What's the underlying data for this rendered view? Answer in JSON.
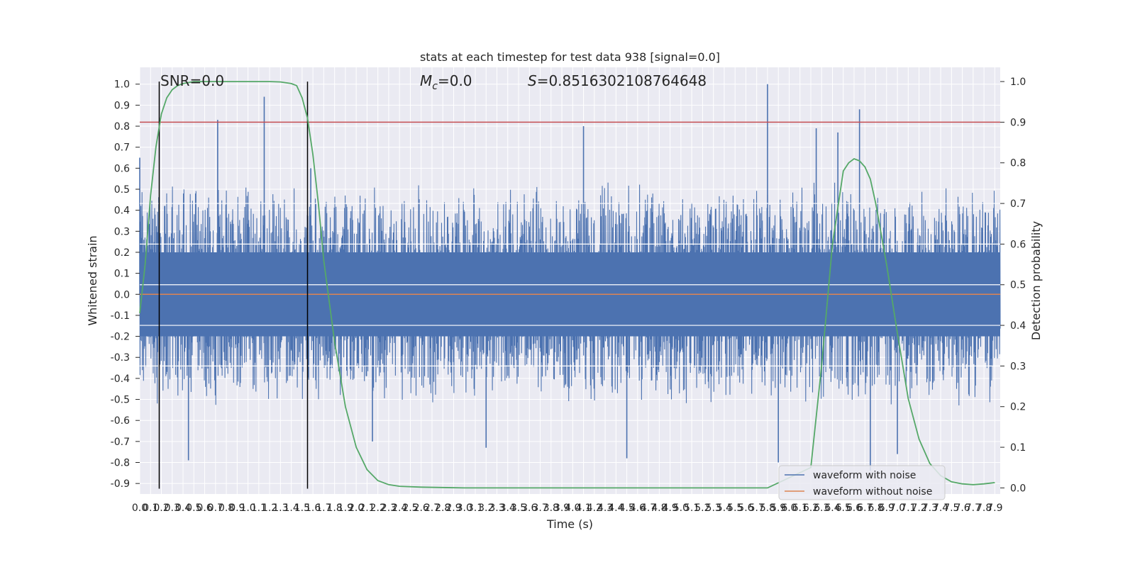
{
  "chart_data": {
    "type": "line",
    "title": "stats at each timestep for test data 938 [signal=0.0]",
    "xlabel": "Time (s)",
    "ylabel_left": "Whitened strain",
    "ylabel_right": "Detection probability",
    "xlim": [
      0.0,
      7.95
    ],
    "ylim_left": [
      -0.95,
      1.08
    ],
    "ylim_right": [
      -0.015,
      1.035
    ],
    "x_tick_step": 0.1,
    "x_ticks_count": 80,
    "y_ticks_left": [
      "1.0",
      "0.9",
      "0.8",
      "0.7",
      "0.6",
      "0.5",
      "0.4",
      "0.3",
      "0.2",
      "0.1",
      "0.0",
      "-0.1",
      "-0.2",
      "-0.3",
      "-0.4",
      "-0.5",
      "-0.6",
      "-0.7",
      "-0.8",
      "-0.9"
    ],
    "y_ticks_right": [
      "1.0",
      "0.9",
      "0.8",
      "0.7",
      "0.6",
      "0.5",
      "0.4",
      "0.3",
      "0.2",
      "0.1",
      "0.0"
    ],
    "annotations": {
      "snr": "SNR=0.0",
      "mc_symbol": "M",
      "mc_sub": "c",
      "mc_value": "=0.0",
      "s_symbol": "S",
      "s_value": "=0.8516302108764648"
    },
    "threshold_right": 0.9,
    "vertical_lines_x": [
      0.18,
      1.55
    ],
    "series": [
      {
        "name": "waveform with noise",
        "color": "#4c72b0",
        "axis": "left",
        "noise_envelope_top": 0.42,
        "noise_envelope_bottom": -0.42,
        "peaks": [
          [
            0.0,
            0.65
          ],
          [
            0.72,
            0.83
          ],
          [
            1.15,
            0.94
          ],
          [
            5.8,
            1.0
          ],
          [
            6.65,
            0.88
          ],
          [
            4.1,
            0.8
          ],
          [
            6.25,
            0.79
          ],
          [
            6.45,
            0.77
          ],
          [
            1.58,
            0.6
          ],
          [
            0.45,
            -0.79
          ],
          [
            6.75,
            -0.84
          ],
          [
            3.2,
            -0.73
          ],
          [
            5.9,
            -0.8
          ],
          [
            7.0,
            -0.76
          ],
          [
            2.15,
            -0.7
          ],
          [
            4.5,
            -0.78
          ]
        ]
      },
      {
        "name": "waveform without noise",
        "color": "#dd8452",
        "axis": "left",
        "y_constant": 0.0
      },
      {
        "name": "detection probability",
        "color": "#55a868",
        "axis": "right",
        "x": [
          0.0,
          0.05,
          0.1,
          0.15,
          0.2,
          0.25,
          0.3,
          0.35,
          0.4,
          0.5,
          0.6,
          0.8,
          1.0,
          1.2,
          1.3,
          1.4,
          1.45,
          1.5,
          1.55,
          1.6,
          1.65,
          1.7,
          1.8,
          1.9,
          2.0,
          2.1,
          2.2,
          2.3,
          2.4,
          2.6,
          3.0,
          4.0,
          5.0,
          5.8,
          6.2,
          6.3,
          6.4,
          6.5,
          6.55,
          6.6,
          6.65,
          6.7,
          6.75,
          6.8,
          6.9,
          7.0,
          7.1,
          7.2,
          7.3,
          7.4,
          7.5,
          7.6,
          7.7,
          7.8,
          7.9
        ],
        "y": [
          0.43,
          0.55,
          0.72,
          0.84,
          0.92,
          0.96,
          0.98,
          0.99,
          0.995,
          1.0,
          1.0,
          1.0,
          1.0,
          1.0,
          0.999,
          0.995,
          0.99,
          0.96,
          0.91,
          0.82,
          0.7,
          0.56,
          0.36,
          0.2,
          0.1,
          0.045,
          0.018,
          0.008,
          0.004,
          0.002,
          0.0,
          0.0,
          0.0,
          0.0,
          0.05,
          0.3,
          0.6,
          0.78,
          0.8,
          0.81,
          0.805,
          0.79,
          0.76,
          0.7,
          0.55,
          0.38,
          0.22,
          0.12,
          0.06,
          0.03,
          0.015,
          0.01,
          0.008,
          0.01,
          0.013
        ]
      }
    ],
    "legend": {
      "placement": "lower-right",
      "entries": [
        {
          "label": "waveform with noise",
          "color": "#4c72b0"
        },
        {
          "label": "waveform without noise",
          "color": "#dd8452"
        }
      ]
    },
    "grid": true,
    "colors": {
      "plot_bg": "#eaeaf2",
      "grid": "#ffffff",
      "noise": "#4c72b0",
      "clean": "#dd8452",
      "prob": "#55a868",
      "threshold": "#c44e52",
      "vline": "#000000"
    }
  }
}
